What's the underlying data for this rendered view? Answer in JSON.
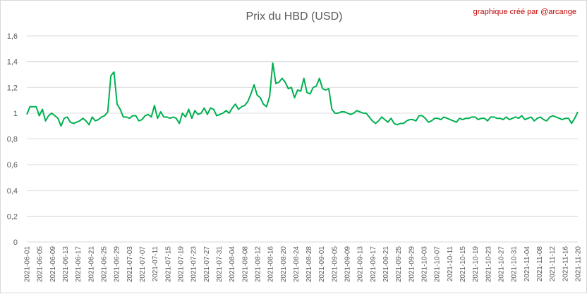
{
  "chart_data": {
    "type": "line",
    "title": "Prix du HBD (USD)",
    "credit": "graphique créé par @arcange",
    "xlabel": "",
    "ylabel": "",
    "ylim": [
      0,
      1.6
    ],
    "yticks": [
      "0",
      "0,2",
      "0,4",
      "0,6",
      "0,8",
      "1",
      "1,2",
      "1,4",
      "1,6"
    ],
    "grid": true,
    "line_color": "#00b050",
    "grid_color": "#d9d9d9",
    "x_tick_labels": [
      "2021-06-01",
      "2021-06-05",
      "2021-06-09",
      "2021-06-13",
      "2021-06-17",
      "2021-06-21",
      "2021-06-25",
      "2021-06-29",
      "2021-07-03",
      "2021-07-07",
      "2021-07-11",
      "2021-07-15",
      "2021-07-19",
      "2021-07-23",
      "2021-07-27",
      "2021-07-31",
      "2021-08-04",
      "2021-08-08",
      "2021-08-12",
      "2021-08-16",
      "2021-08-20",
      "2021-08-24",
      "2021-08-28",
      "2021-09-01",
      "2021-09-05",
      "2021-09-09",
      "2021-09-13",
      "2021-09-17",
      "2021-09-21",
      "2021-09-25",
      "2021-09-29",
      "2021-10-03",
      "2021-10-07",
      "2021-10-11",
      "2021-10-15",
      "2021-10-19",
      "2021-10-23",
      "2021-10-27",
      "2021-10-31",
      "2021-11-04",
      "2021-11-08",
      "2021-11-12",
      "2021-11-16",
      "2021-11-20"
    ],
    "series": [
      {
        "values": [
          0.99,
          1.05,
          1.05,
          1.05,
          0.98,
          1.03,
          0.94,
          0.98,
          1.0,
          0.98,
          0.96,
          0.9,
          0.96,
          0.97,
          0.93,
          0.92,
          0.93,
          0.94,
          0.96,
          0.94,
          0.91,
          0.97,
          0.94,
          0.95,
          0.97,
          0.98,
          1.01,
          1.29,
          1.32,
          1.07,
          1.03,
          0.97,
          0.97,
          0.96,
          0.98,
          0.98,
          0.94,
          0.95,
          0.98,
          0.99,
          0.97,
          1.06,
          0.96,
          1.01,
          0.97,
          0.97,
          0.96,
          0.97,
          0.96,
          0.92,
          1.0,
          0.97,
          1.03,
          0.96,
          1.02,
          0.99,
          1.0,
          1.04,
          0.99,
          1.04,
          1.03,
          0.98,
          0.99,
          1.0,
          1.02,
          1.0,
          1.04,
          1.07,
          1.03,
          1.05,
          1.06,
          1.09,
          1.15,
          1.22,
          1.14,
          1.12,
          1.07,
          1.05,
          1.13,
          1.39,
          1.23,
          1.24,
          1.27,
          1.24,
          1.19,
          1.2,
          1.12,
          1.18,
          1.17,
          1.27,
          1.16,
          1.15,
          1.2,
          1.21,
          1.27,
          1.19,
          1.18,
          1.19,
          1.03,
          1.0,
          1.0,
          1.01,
          1.01,
          1.0,
          0.99,
          1.0,
          1.02,
          1.01,
          1.0,
          1.0,
          0.97,
          0.94,
          0.92,
          0.94,
          0.97,
          0.95,
          0.93,
          0.96,
          0.92,
          0.91,
          0.92,
          0.92,
          0.94,
          0.95,
          0.95,
          0.94,
          0.98,
          0.98,
          0.96,
          0.93,
          0.94,
          0.96,
          0.96,
          0.95,
          0.97,
          0.96,
          0.95,
          0.94,
          0.93,
          0.96,
          0.95,
          0.96,
          0.96,
          0.97,
          0.97,
          0.95,
          0.96,
          0.96,
          0.94,
          0.97,
          0.97,
          0.96,
          0.96,
          0.95,
          0.97,
          0.95,
          0.96,
          0.97,
          0.96,
          0.98,
          0.95,
          0.96,
          0.97,
          0.94,
          0.96,
          0.97,
          0.95,
          0.94,
          0.97,
          0.98,
          0.97,
          0.96,
          0.95,
          0.96,
          0.96,
          0.92,
          0.96,
          1.01
        ]
      }
    ]
  }
}
